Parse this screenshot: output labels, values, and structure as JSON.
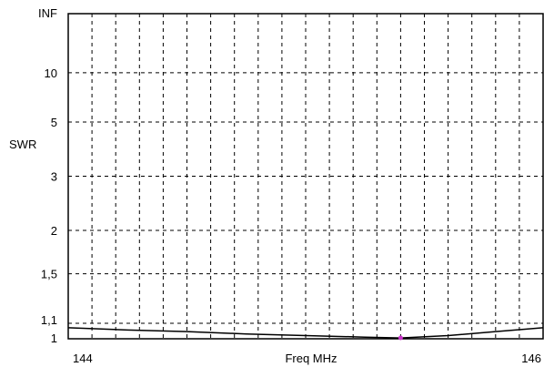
{
  "chart_data": {
    "type": "line",
    "title": "",
    "xlabel": "Freq MHz",
    "ylabel": "SWR",
    "xlim": [
      144,
      146
    ],
    "x_tick_labels": [
      {
        "value": 144,
        "label": "144"
      },
      {
        "value": 146,
        "label": "146"
      }
    ],
    "x_grid_divisions": 20,
    "y_ticks": [
      {
        "value": "INF",
        "label": "INF"
      },
      {
        "value": 10,
        "label": "10"
      },
      {
        "value": 5,
        "label": "5"
      },
      {
        "value": 3,
        "label": "3"
      },
      {
        "value": 2,
        "label": "2"
      },
      {
        "value": 1.5,
        "label": "1,5"
      },
      {
        "value": 1.1,
        "label": "1,1"
      },
      {
        "value": 1,
        "label": "1"
      }
    ],
    "y_scale": "reflection-coefficient",
    "grid": true,
    "grid_style": "dashed",
    "series": [
      {
        "color": "#000000",
        "x": [
          144,
          144.25,
          144.5,
          144.75,
          145,
          145.25,
          145.4,
          145.6,
          145.8,
          146
        ],
        "y": [
          1.07,
          1.055,
          1.045,
          1.03,
          1.02,
          1.01,
          1.005,
          1.02,
          1.045,
          1.07
        ]
      }
    ],
    "marker": {
      "x": 145.4,
      "y": 1.0,
      "color": "#cc33cc"
    }
  }
}
